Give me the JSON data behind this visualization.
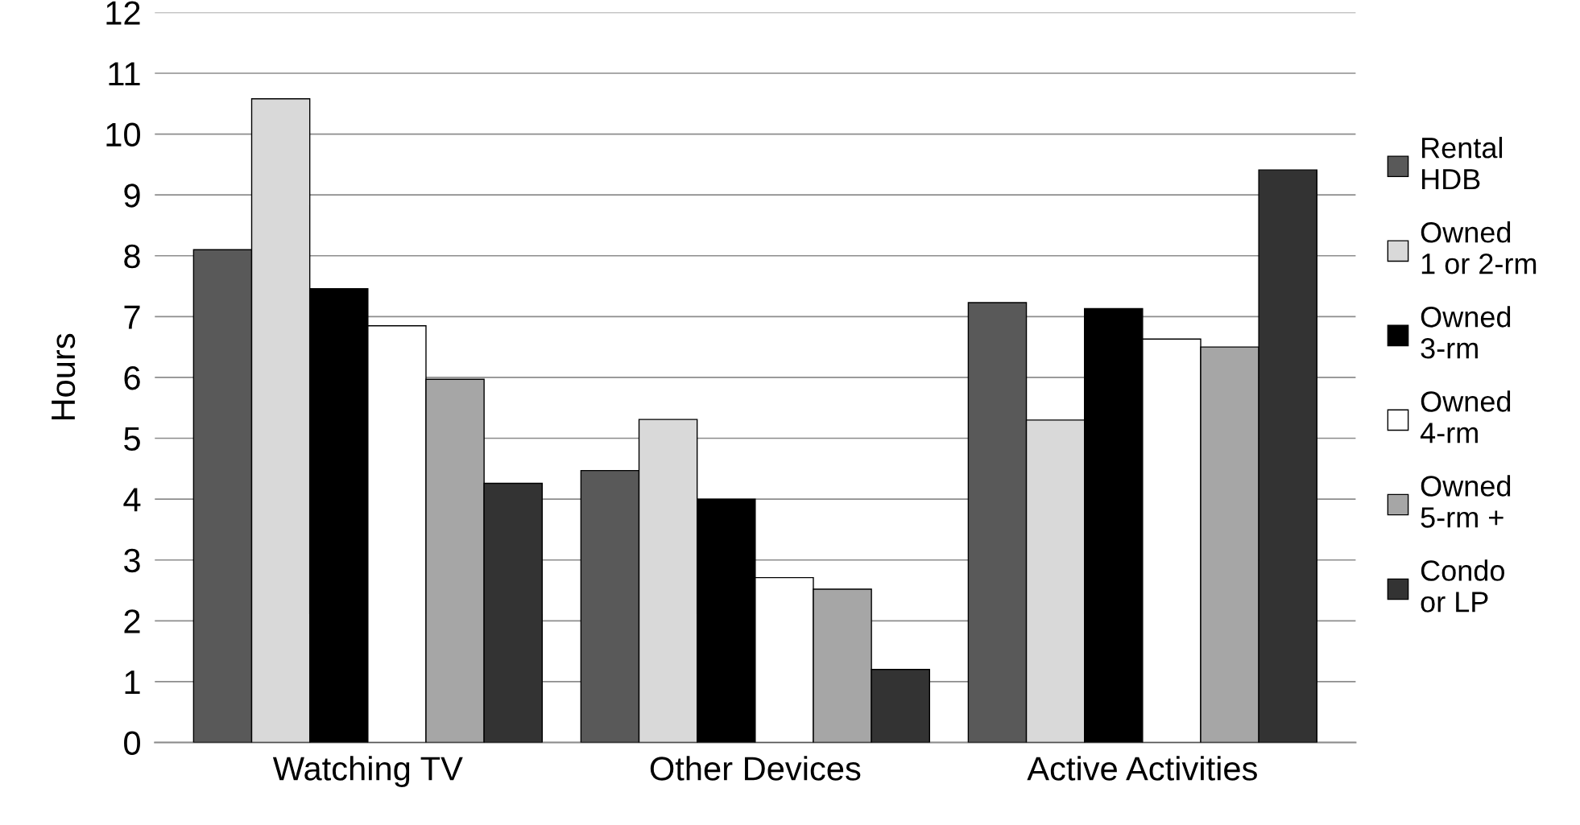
{
  "chart_data": {
    "type": "bar",
    "ylabel": "Hours",
    "categories": [
      "Watching TV",
      "Other Devices",
      "Active Activities"
    ],
    "series": [
      {
        "name": "Rental\nHDB",
        "color": "#595959",
        "values": [
          8.1,
          4.47,
          7.23
        ]
      },
      {
        "name": "Owned\n1 or 2-rm",
        "color": "#d9d9d9",
        "values": [
          10.58,
          5.31,
          5.3
        ]
      },
      {
        "name": "Owned\n3-rm",
        "color": "#000000",
        "values": [
          7.46,
          4.0,
          7.13
        ]
      },
      {
        "name": "Owned\n4-rm",
        "color": "#ffffff",
        "values": [
          6.85,
          2.71,
          6.63
        ]
      },
      {
        "name": "Owned\n5-rm +",
        "color": "#a6a6a6",
        "values": [
          5.97,
          2.52,
          6.5
        ]
      },
      {
        "name": "Condo\nor LP",
        "color": "#333333",
        "values": [
          4.26,
          1.2,
          9.41
        ]
      }
    ],
    "ylim": [
      0,
      12
    ],
    "yticks": [
      0,
      1,
      2,
      3,
      4,
      5,
      6,
      7,
      8,
      9,
      10,
      11,
      12
    ],
    "grid": "y",
    "legend": "right"
  }
}
